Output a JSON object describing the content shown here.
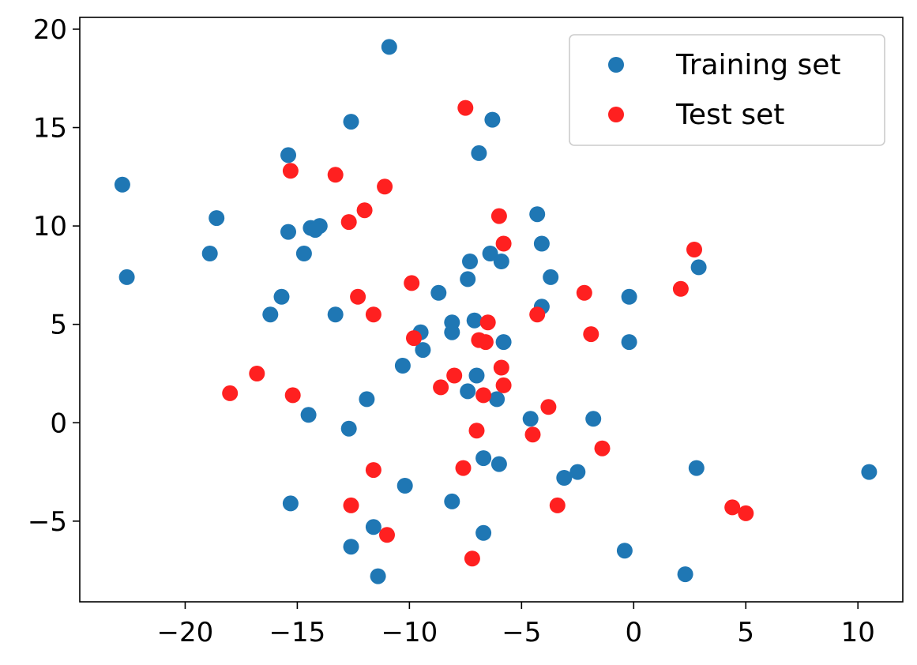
{
  "chart_data": {
    "type": "scatter",
    "title": "",
    "xlabel": "",
    "ylabel": "",
    "xlim": [
      -24.7,
      12.0
    ],
    "ylim": [
      -9.1,
      20.6
    ],
    "xticks": [
      -20,
      -15,
      -10,
      -5,
      0,
      5,
      10
    ],
    "yticks": [
      -5,
      0,
      5,
      10,
      15,
      20
    ],
    "xtick_labels": [
      "−20",
      "−15",
      "−10",
      "−5",
      "0",
      "5",
      "10"
    ],
    "ytick_labels": [
      "−5",
      "0",
      "5",
      "10",
      "15",
      "20"
    ],
    "grid": false,
    "legend_position": "top-right",
    "series": [
      {
        "name": "Training set",
        "color": "#1f77b4",
        "points": [
          [
            -10.9,
            19.1
          ],
          [
            -12.6,
            15.3
          ],
          [
            -6.3,
            15.4
          ],
          [
            -15.4,
            13.6
          ],
          [
            -6.9,
            13.7
          ],
          [
            -22.8,
            12.1
          ],
          [
            -18.6,
            10.4
          ],
          [
            -14.4,
            9.9
          ],
          [
            -14.0,
            10.0
          ],
          [
            -14.2,
            9.8
          ],
          [
            -15.4,
            9.7
          ],
          [
            -18.9,
            8.6
          ],
          [
            -14.7,
            8.6
          ],
          [
            -22.6,
            7.4
          ],
          [
            -4.3,
            10.6
          ],
          [
            -4.1,
            9.1
          ],
          [
            -7.3,
            8.2
          ],
          [
            -6.4,
            8.6
          ],
          [
            -5.9,
            8.2
          ],
          [
            -7.4,
            7.3
          ],
          [
            -3.7,
            7.4
          ],
          [
            2.9,
            7.9
          ],
          [
            -8.7,
            6.6
          ],
          [
            -15.7,
            6.4
          ],
          [
            -16.2,
            5.5
          ],
          [
            -13.3,
            5.5
          ],
          [
            -4.1,
            5.9
          ],
          [
            -0.2,
            6.4
          ],
          [
            -8.1,
            5.1
          ],
          [
            -7.1,
            5.2
          ],
          [
            -9.5,
            4.6
          ],
          [
            -8.1,
            4.6
          ],
          [
            -9.4,
            3.7
          ],
          [
            -5.8,
            4.1
          ],
          [
            -0.2,
            4.1
          ],
          [
            -10.3,
            2.9
          ],
          [
            -7.0,
            2.4
          ],
          [
            -7.4,
            1.6
          ],
          [
            -6.1,
            1.2
          ],
          [
            -11.9,
            1.2
          ],
          [
            -14.5,
            0.4
          ],
          [
            -4.6,
            0.2
          ],
          [
            -1.8,
            0.2
          ],
          [
            -12.7,
            -0.3
          ],
          [
            -6.7,
            -1.8
          ],
          [
            -6.0,
            -2.1
          ],
          [
            -3.1,
            -2.8
          ],
          [
            -2.5,
            -2.5
          ],
          [
            2.8,
            -2.3
          ],
          [
            10.5,
            -2.5
          ],
          [
            -10.2,
            -3.2
          ],
          [
            -8.1,
            -4.0
          ],
          [
            -15.3,
            -4.1
          ],
          [
            -11.6,
            -5.3
          ],
          [
            -6.7,
            -5.6
          ],
          [
            -12.6,
            -6.3
          ],
          [
            -0.4,
            -6.5
          ],
          [
            -11.4,
            -7.8
          ],
          [
            2.3,
            -7.7
          ]
        ]
      },
      {
        "name": "Test set",
        "color": "#ff2020",
        "points": [
          [
            -7.5,
            16.0
          ],
          [
            -15.3,
            12.8
          ],
          [
            -13.3,
            12.6
          ],
          [
            -11.1,
            12.0
          ],
          [
            -12.0,
            10.8
          ],
          [
            -12.7,
            10.2
          ],
          [
            -6.0,
            10.5
          ],
          [
            -5.8,
            9.1
          ],
          [
            2.7,
            8.8
          ],
          [
            -9.9,
            7.1
          ],
          [
            2.1,
            6.8
          ],
          [
            -2.2,
            6.6
          ],
          [
            -12.3,
            6.4
          ],
          [
            -11.6,
            5.5
          ],
          [
            -4.3,
            5.5
          ],
          [
            -6.5,
            5.1
          ],
          [
            -1.9,
            4.5
          ],
          [
            -9.8,
            4.3
          ],
          [
            -6.9,
            4.2
          ],
          [
            -6.6,
            4.1
          ],
          [
            -5.9,
            2.8
          ],
          [
            -16.8,
            2.5
          ],
          [
            -8.0,
            2.4
          ],
          [
            -8.6,
            1.8
          ],
          [
            -5.8,
            1.9
          ],
          [
            -18.0,
            1.5
          ],
          [
            -15.2,
            1.4
          ],
          [
            -6.7,
            1.4
          ],
          [
            -3.8,
            0.8
          ],
          [
            -7.0,
            -0.4
          ],
          [
            -4.5,
            -0.6
          ],
          [
            -1.4,
            -1.3
          ],
          [
            -11.6,
            -2.4
          ],
          [
            -7.6,
            -2.3
          ],
          [
            -12.6,
            -4.2
          ],
          [
            -3.4,
            -4.2
          ],
          [
            4.4,
            -4.3
          ],
          [
            5.0,
            -4.6
          ],
          [
            -11.0,
            -5.7
          ],
          [
            -7.2,
            -6.9
          ]
        ]
      }
    ]
  }
}
